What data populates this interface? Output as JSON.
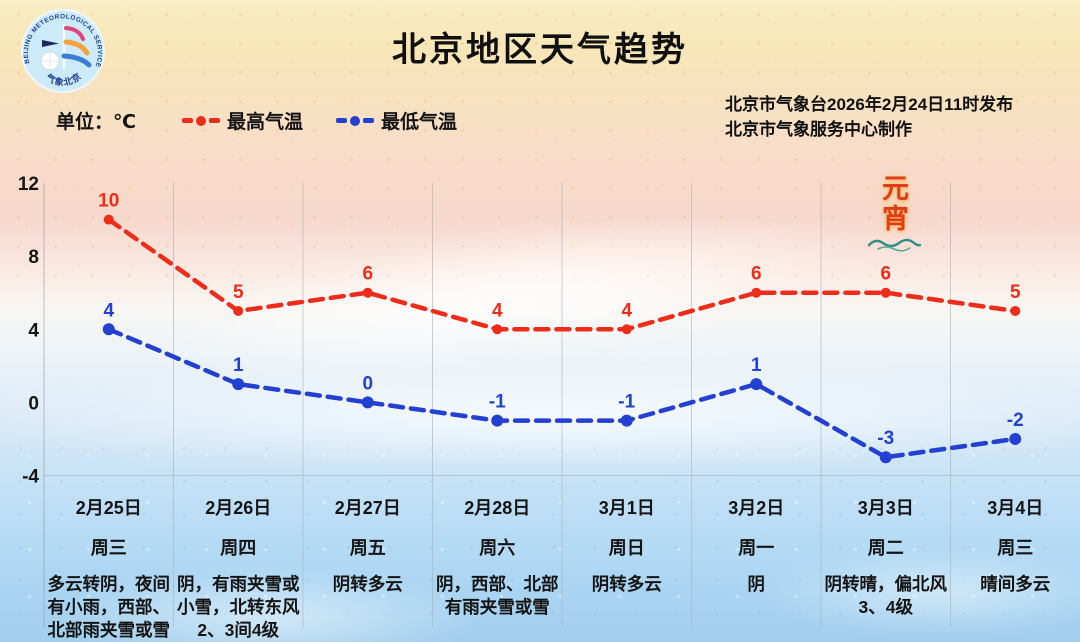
{
  "header": {
    "title": "北京地区天气趋势",
    "unit_label": "单位：℃",
    "legend": [
      {
        "label": "最高气温",
        "color": "#ed2c1a"
      },
      {
        "label": "最低气温",
        "color": "#2440d0"
      }
    ],
    "issued_line1": "北京市气象台2026年2月24日11时发布",
    "issued_line2": "北京市气象服务中心制作",
    "logo": {
      "ring_text": "BEIJING  METEOROLOGICAL  SERVICE",
      "bottom_text": "气象北京"
    }
  },
  "decoration": {
    "festival_text": "元宵"
  },
  "chart_data": {
    "type": "line",
    "x": [
      "2月25日",
      "2月26日",
      "2月27日",
      "2月28日",
      "3月1日",
      "3月2日",
      "3月3日",
      "3月4日"
    ],
    "series": [
      {
        "name": "最高气温",
        "color": "#ed2c1a",
        "style": "dashed",
        "values": [
          10,
          5,
          6,
          4,
          4,
          6,
          6,
          5
        ]
      },
      {
        "name": "最低气温",
        "color": "#2440d0",
        "style": "dashed",
        "values": [
          4,
          1,
          0,
          -1,
          -1,
          1,
          -3,
          -2
        ]
      }
    ],
    "yticks": [
      12,
      8,
      4,
      0,
      -4
    ],
    "ylim": [
      -4,
      12
    ],
    "ylabel": "℃",
    "grid": "vertical-columns-plus-baseline",
    "legend_position": "top-left",
    "data_labels": true
  },
  "forecast": {
    "days": [
      {
        "date": "2月25日",
        "weekday": "周三",
        "desc": "多云转阴，夜间有小雨，西部、北部雨夹雪或雪"
      },
      {
        "date": "2月26日",
        "weekday": "周四",
        "desc": "阴，有雨夹雪或小雪，北转东风2、3间4级"
      },
      {
        "date": "2月27日",
        "weekday": "周五",
        "desc": "阴转多云"
      },
      {
        "date": "2月28日",
        "weekday": "周六",
        "desc": "阴，西部、北部有雨夹雪或雪"
      },
      {
        "date": "3月1日",
        "weekday": "周日",
        "desc": "阴转多云"
      },
      {
        "date": "3月2日",
        "weekday": "周一",
        "desc": "阴"
      },
      {
        "date": "3月3日",
        "weekday": "周二",
        "desc": "阴转晴，偏北风3、4级"
      },
      {
        "date": "3月4日",
        "weekday": "周三",
        "desc": "晴间多云"
      }
    ]
  }
}
